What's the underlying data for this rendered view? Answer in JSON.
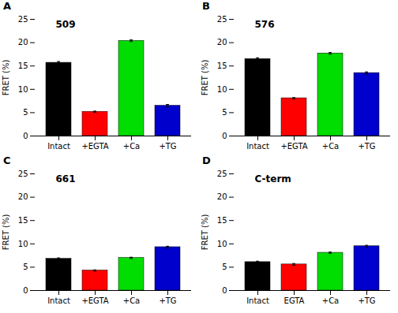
{
  "chart_data": [
    {
      "type": "bar",
      "title": "509",
      "annotations": [
        "A"
      ],
      "categories": [
        "Intact",
        "+EGTA",
        "+Ca",
        "+TG"
      ],
      "values": [
        15.7,
        5.2,
        20.4,
        6.5
      ],
      "errors": [
        0.25,
        0.12,
        0.18,
        0.25
      ],
      "colors": [
        "#000000",
        "#ff0000",
        "#00dd00",
        "#0000cc"
      ],
      "ylabel": "FRET (%)",
      "ylim": [
        0,
        25
      ],
      "yticks": [
        0,
        5,
        10,
        15,
        20,
        25
      ]
    },
    {
      "type": "bar",
      "title": "576",
      "annotations": [
        "B"
      ],
      "categories": [
        "Intact",
        "+EGTA",
        "+Ca",
        "+TG"
      ],
      "values": [
        16.5,
        8.1,
        17.7,
        13.5
      ],
      "errors": [
        0.25,
        0.12,
        0.18,
        0.22
      ],
      "colors": [
        "#000000",
        "#ff0000",
        "#00dd00",
        "#0000cc"
      ],
      "ylabel": "FRET (%)",
      "ylim": [
        0,
        25
      ],
      "yticks": [
        0,
        5,
        10,
        15,
        20,
        25
      ]
    },
    {
      "type": "bar",
      "title": "661",
      "annotations": [
        "C"
      ],
      "categories": [
        "Intact",
        "+EGTA",
        "+Ca",
        "+TG"
      ],
      "values": [
        6.8,
        4.3,
        7.0,
        9.3
      ],
      "errors": [
        0.18,
        0.12,
        0.13,
        0.18
      ],
      "colors": [
        "#000000",
        "#ff0000",
        "#00dd00",
        "#0000cc"
      ],
      "ylabel": "FRET (%)",
      "ylim": [
        0,
        25
      ],
      "yticks": [
        0,
        5,
        10,
        15,
        20,
        25
      ]
    },
    {
      "type": "bar",
      "title": "C-term",
      "annotations": [
        "D"
      ],
      "categories": [
        "Intact",
        "EGTA",
        "+Ca",
        "+TG"
      ],
      "values": [
        6.1,
        5.6,
        8.1,
        9.5
      ],
      "errors": [
        0.18,
        0.18,
        0.13,
        0.18
      ],
      "colors": [
        "#000000",
        "#ff0000",
        "#00dd00",
        "#0000cc"
      ],
      "ylabel": "FRET (%)",
      "ylim": [
        0,
        25
      ],
      "yticks": [
        0,
        5,
        10,
        15,
        20,
        25
      ]
    }
  ]
}
